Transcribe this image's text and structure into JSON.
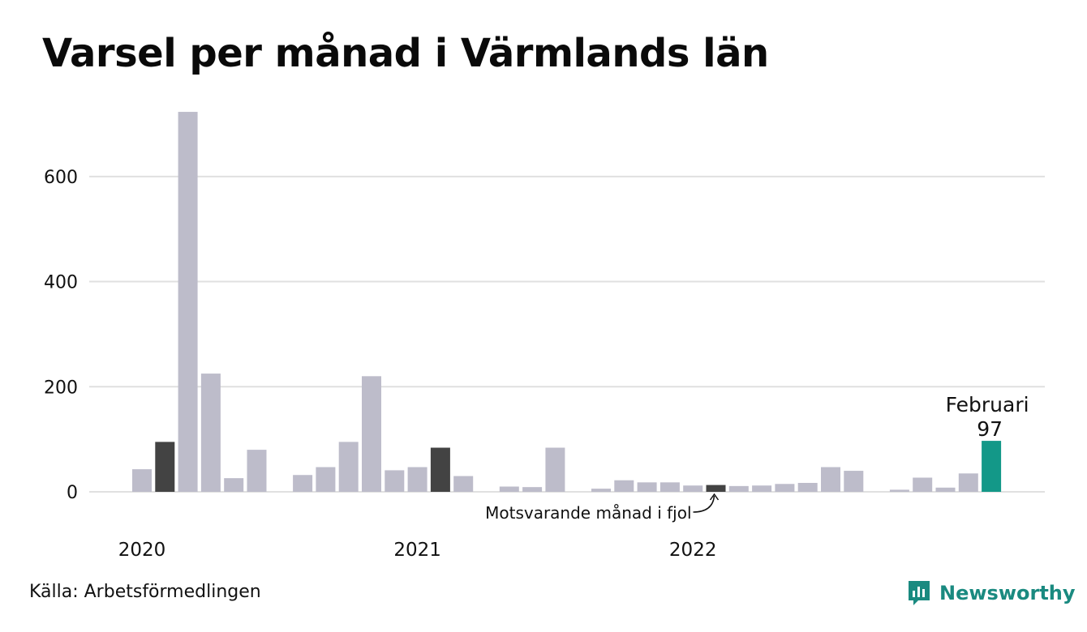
{
  "title": "Varsel per månad i Värmlands län",
  "source": "Källa: Arbetsförmedlingen",
  "brand": {
    "name": "Newsworthy",
    "logo_icon": "newsworthy-logo-icon",
    "color": "#1a8a80"
  },
  "colors": {
    "default": "#bdbcca",
    "comparison": "#434343",
    "current": "#139888",
    "grid": "#e0e0e0"
  },
  "chart_data": {
    "type": "bar",
    "ylim": [
      0,
      720
    ],
    "yticks": [
      0,
      200,
      400,
      600
    ],
    "grid": true,
    "year_labels": [
      {
        "label": "2020",
        "index": 0
      },
      {
        "label": "2021",
        "index": 12
      },
      {
        "label": "2022",
        "index": 24
      }
    ],
    "values": [
      43,
      95,
      723,
      225,
      26,
      80,
      0,
      32,
      47,
      95,
      220,
      41,
      47,
      84,
      30,
      0,
      10,
      9,
      84,
      0,
      6,
      22,
      18,
      18,
      12,
      13,
      11,
      12,
      15,
      17,
      47,
      40,
      0,
      4,
      27,
      8,
      35,
      97
    ],
    "highlight_comparison": [
      1,
      13,
      25
    ],
    "highlight_current": 37,
    "current_label": {
      "month": "Februari",
      "value": "97"
    },
    "annotation": {
      "text": "Motsvarande månad i fjol",
      "target_index": 25
    }
  }
}
